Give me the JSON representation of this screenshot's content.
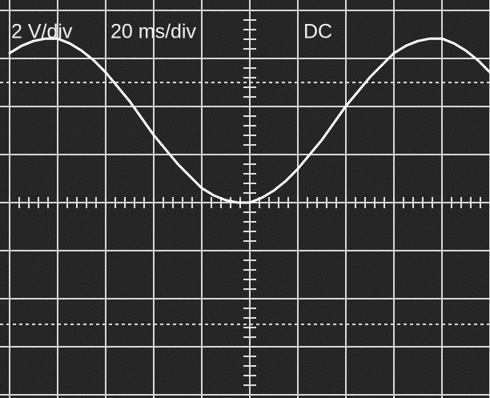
{
  "chart_data": {
    "type": "line",
    "labels": [
      "2 V/div",
      "20 ms/div",
      "DC"
    ],
    "x": [
      -100,
      -95,
      -90,
      -85,
      -80,
      -75,
      -70,
      -65,
      -60,
      -55,
      -50,
      -45,
      -40,
      -35,
      -30,
      -25,
      -20,
      -15,
      -10,
      -5,
      0,
      5,
      10,
      15,
      20,
      25,
      30,
      35,
      40,
      45,
      50,
      55,
      60,
      65,
      70,
      75,
      80,
      85,
      90,
      95,
      100
    ],
    "series": [
      {
        "color": "#ffffff",
        "values": [
          6.2,
          6.5,
          6.7,
          6.8,
          6.8,
          6.6,
          6.3,
          5.9,
          5.4,
          4.8,
          4.2,
          3.5,
          2.8,
          2.2,
          1.6,
          1.1,
          0.6,
          0.3,
          0.1,
          0.0,
          0.0,
          0.2,
          0.5,
          0.9,
          1.4,
          2.0,
          2.6,
          3.3,
          4.0,
          4.6,
          5.2,
          5.7,
          6.2,
          6.5,
          6.7,
          6.8,
          6.8,
          6.6,
          6.3,
          5.9,
          5.4
        ]
      }
    ],
    "xlim": [
      -100,
      100
    ],
    "ylim": [
      -8.1,
      8.4
    ]
  }
}
